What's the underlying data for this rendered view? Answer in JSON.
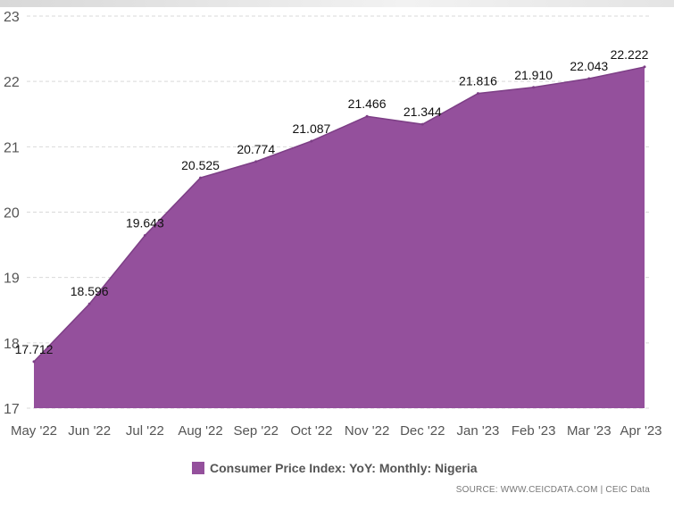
{
  "chart_data": {
    "type": "area",
    "title": "",
    "xlabel": "",
    "ylabel": "",
    "categories": [
      "May '22",
      "Jun '22",
      "Jul '22",
      "Aug '22",
      "Sep '22",
      "Oct '22",
      "Nov '22",
      "Dec '22",
      "Jan '23",
      "Feb '23",
      "Mar '23",
      "Apr '23"
    ],
    "series": [
      {
        "name": "Consumer Price Index: YoY: Monthly: Nigeria",
        "values": [
          17.712,
          18.596,
          19.643,
          20.525,
          20.774,
          21.087,
          21.466,
          21.344,
          21.816,
          21.91,
          22.043,
          22.222
        ],
        "labels": [
          "17.712",
          "18.596",
          "19.643",
          "20.525",
          "20.774",
          "21.087",
          "21.466",
          "21.344",
          "21.816",
          "21.910",
          "22.043",
          "22.222"
        ],
        "color": "#94509c"
      }
    ],
    "ylim": [
      17,
      23
    ],
    "yticks": [
      "17",
      "18",
      "19",
      "20",
      "21",
      "22",
      "23"
    ],
    "grid": true,
    "legend": "bottom-center"
  },
  "source": "SOURCE: WWW.CEICDATA.COM | CEIC Data"
}
